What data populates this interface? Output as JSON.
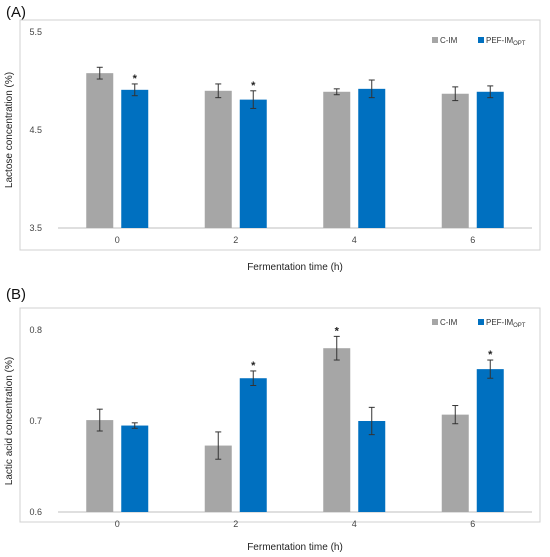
{
  "colors": {
    "control": "#a6a6a6",
    "treated": "#0070c0",
    "frame": "#d0d0d0",
    "error": "#333333"
  },
  "chart_data": [
    {
      "panel": "(A)",
      "type": "bar",
      "xlabel": "Fermentation time (h)",
      "ylabel": "Lactose concentration (%)",
      "ylim": [
        3.5,
        5.5
      ],
      "yticks": [
        "3.5",
        "4.5",
        "5.5"
      ],
      "yticks_values": [
        3.5,
        4.5,
        5.5
      ],
      "categories": [
        "0",
        "2",
        "4",
        "6"
      ],
      "legend_position": "top-right",
      "grid": false,
      "series": [
        {
          "name": "C-IM",
          "name_sub": "",
          "values": [
            5.08,
            4.9,
            4.89,
            4.87
          ],
          "errors": [
            0.06,
            0.07,
            0.03,
            0.07
          ],
          "significant": [
            false,
            false,
            false,
            false
          ]
        },
        {
          "name": "PEF-IM",
          "name_sub": "OPT",
          "values": [
            4.91,
            4.81,
            4.92,
            4.89
          ],
          "errors": [
            0.06,
            0.09,
            0.09,
            0.06
          ],
          "significant": [
            true,
            true,
            false,
            false
          ]
        }
      ],
      "significance_marker": "*"
    },
    {
      "panel": "(B)",
      "type": "bar",
      "xlabel": "Fermentation time (h)",
      "ylabel": "Lactic acid concentration (%)",
      "ylim": [
        0.6,
        0.8
      ],
      "yticks": [
        "0.6",
        "0.7",
        "0.8"
      ],
      "yticks_values": [
        0.6,
        0.7,
        0.8
      ],
      "categories": [
        "0",
        "2",
        "4",
        "6"
      ],
      "legend_position": "top-right",
      "grid": false,
      "series": [
        {
          "name": "C-IM",
          "name_sub": "",
          "values": [
            0.701,
            0.673,
            0.78,
            0.707
          ],
          "errors": [
            0.012,
            0.015,
            0.013,
            0.01
          ],
          "significant": [
            false,
            false,
            true,
            false
          ]
        },
        {
          "name": "PEF-IM",
          "name_sub": "OPT",
          "values": [
            0.695,
            0.747,
            0.7,
            0.757
          ],
          "errors": [
            0.003,
            0.008,
            0.015,
            0.01
          ],
          "significant": [
            false,
            true,
            false,
            true
          ]
        }
      ],
      "significance_marker": "*"
    }
  ]
}
